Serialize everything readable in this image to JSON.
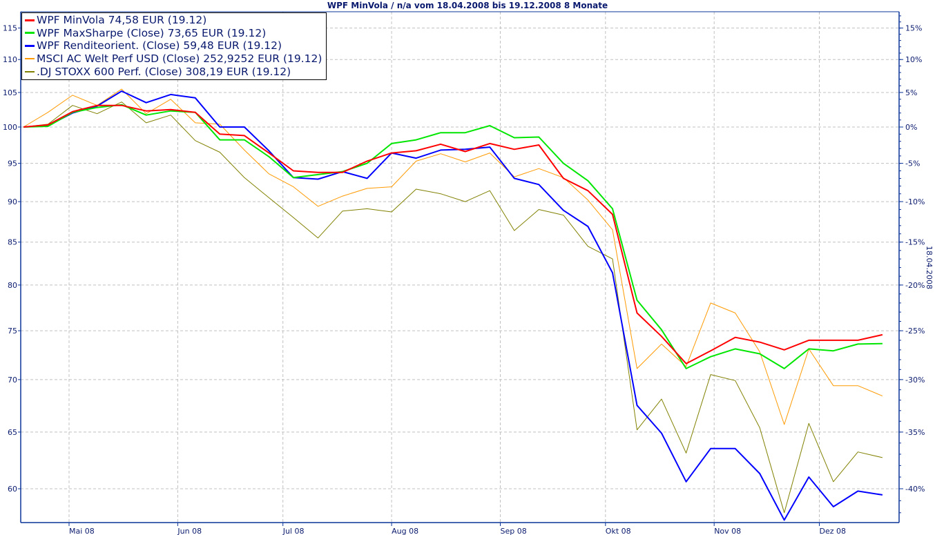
{
  "chart_data": {
    "type": "line",
    "title": "WPF MinVola / n/a vom 18.04.2008 bis 19.12.2008 8 Monate",
    "y_axis_right_label": "18.04.2008",
    "y_scale": "log",
    "ylim": [
      57,
      117
    ],
    "y_ticks_left": [
      60,
      65,
      70,
      75,
      80,
      85,
      90,
      95,
      100,
      105,
      110,
      115
    ],
    "y_ticks_right": [
      "15%",
      "10%",
      "5%",
      "0%",
      "-5%",
      "-10%",
      "-15%",
      "-20%",
      "-25%",
      "-30%",
      "-35%",
      "-40%"
    ],
    "x_ticks": [
      {
        "date": "2008-05-01",
        "label": "Mai 08"
      },
      {
        "date": "2008-06-01",
        "label": "Jun 08"
      },
      {
        "date": "2008-07-01",
        "label": "Jul 08"
      },
      {
        "date": "2008-08-01",
        "label": "Aug 08"
      },
      {
        "date": "2008-09-01",
        "label": "Sep 08"
      },
      {
        "date": "2008-10-01",
        "label": "Okt 08"
      },
      {
        "date": "2008-11-01",
        "label": "Nov 08"
      },
      {
        "date": "2008-12-01",
        "label": "Dez 08"
      }
    ],
    "xlim": [
      "2008-04-18",
      "2008-12-19"
    ],
    "grid": true,
    "legend_placement": "top-left",
    "x": [
      "2008-04-18",
      "2008-04-25",
      "2008-05-02",
      "2008-05-09",
      "2008-05-16",
      "2008-05-23",
      "2008-05-30",
      "2008-06-06",
      "2008-06-13",
      "2008-06-20",
      "2008-06-27",
      "2008-07-04",
      "2008-07-11",
      "2008-07-18",
      "2008-07-25",
      "2008-08-01",
      "2008-08-08",
      "2008-08-15",
      "2008-08-22",
      "2008-08-29",
      "2008-09-05",
      "2008-09-12",
      "2008-09-19",
      "2008-09-26",
      "2008-10-03",
      "2008-10-10",
      "2008-10-17",
      "2008-10-24",
      "2008-10-31",
      "2008-11-07",
      "2008-11-14",
      "2008-11-21",
      "2008-11-28",
      "2008-12-05",
      "2008-12-12",
      "2008-12-19"
    ],
    "series": [
      {
        "name": "WPF MinVola 74,58 EUR (19.12)",
        "color": "#ff0000",
        "width": 2,
        "values": [
          100,
          100.3,
          102.2,
          103.1,
          103.1,
          102.3,
          102.5,
          102.1,
          99.0,
          98.8,
          96.4,
          94.0,
          93.8,
          93.8,
          95.3,
          96.4,
          96.7,
          97.6,
          96.6,
          97.7,
          96.9,
          97.5,
          93.0,
          91.4,
          88.4,
          76.9,
          74.4,
          71.6,
          72.9,
          74.3,
          73.8,
          73.0,
          74.0,
          74.0,
          74.0,
          74.58
        ]
      },
      {
        "name": "WPF MaxSharpe (Close) 73,65 EUR (19.12)",
        "color": "#00e600",
        "width": 2,
        "values": [
          100,
          100.1,
          102.1,
          102.8,
          103.2,
          101.7,
          102.3,
          102.1,
          98.2,
          98.2,
          95.9,
          93.1,
          93.5,
          93.9,
          95.0,
          97.7,
          98.2,
          99.2,
          99.2,
          100.2,
          98.5,
          98.6,
          95.0,
          92.7,
          89.1,
          78.3,
          75.1,
          71.1,
          72.3,
          73.1,
          72.6,
          71.1,
          73.1,
          72.9,
          73.6,
          73.65
        ]
      },
      {
        "name": "WPF Renditeorient. (Close) 59,48 EUR (19.12)",
        "color": "#0000ff",
        "width": 2,
        "values": [
          100,
          100.2,
          102.0,
          103.0,
          105.2,
          103.5,
          104.7,
          104.2,
          100.0,
          100.0,
          96.7,
          93.1,
          92.9,
          93.9,
          93.0,
          96.4,
          95.7,
          96.8,
          96.9,
          97.2,
          93.0,
          92.2,
          88.9,
          86.9,
          81.4,
          67.5,
          64.9,
          60.6,
          63.5,
          63.5,
          61.3,
          57.4,
          61.0,
          58.5,
          59.8,
          59.48
        ]
      },
      {
        "name": "MSCI AC Welt Perf USD (Close) 252,9252 EUR (19.12)",
        "color": "#ff9900",
        "width": 1,
        "values": [
          100,
          102.1,
          104.6,
          103.1,
          105.5,
          101.9,
          104.0,
          100.6,
          100.4,
          96.8,
          93.6,
          91.9,
          89.4,
          90.7,
          91.7,
          91.9,
          95.3,
          96.3,
          95.2,
          96.4,
          93.2,
          94.3,
          93.1,
          90.2,
          86.5,
          71.1,
          73.6,
          71.3,
          78.0,
          76.9,
          72.8,
          65.7,
          73.1,
          69.4,
          69.4,
          68.4
        ]
      },
      {
        "name": ".DJ STOXX 600 Perf. (Close) 308,19 EUR (19.12)",
        "color": "#808000",
        "width": 1,
        "values": [
          100,
          100.4,
          103.1,
          101.9,
          103.6,
          100.6,
          101.7,
          98.1,
          96.5,
          93.1,
          90.5,
          88.0,
          85.5,
          88.8,
          89.1,
          88.7,
          91.6,
          91.0,
          90.0,
          91.4,
          86.4,
          89.0,
          88.3,
          84.5,
          83.0,
          65.2,
          68.1,
          63.1,
          70.5,
          69.9,
          65.4,
          58.0,
          65.8,
          60.6,
          63.2,
          62.7
        ]
      }
    ]
  }
}
